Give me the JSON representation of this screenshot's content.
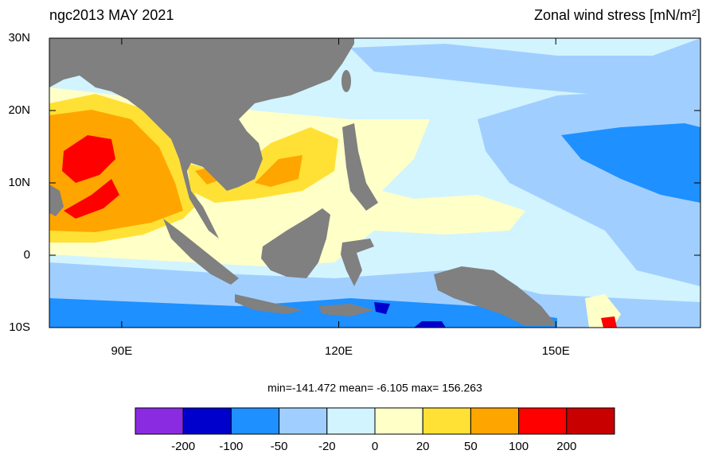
{
  "header": {
    "left_title": "ngc2013 MAY 2021",
    "right_title": "Zonal wind stress [mN/m²]"
  },
  "map": {
    "lonlim": [
      80,
      170
    ],
    "latlim": [
      -10,
      30
    ],
    "lat_ticks": [
      {
        "value": 30,
        "label": "30N"
      },
      {
        "value": 20,
        "label": "20N"
      },
      {
        "value": 10,
        "label": "10N"
      },
      0,
      {
        "value": -10,
        "label": "10S"
      }
    ],
    "lon_ticks": [
      {
        "value": 90,
        "label": "90E"
      },
      {
        "value": 120,
        "label": "120E"
      },
      {
        "value": 150,
        "label": "150E"
      }
    ],
    "land_color": "#808080"
  },
  "stats": "min=-141.472  mean=  -6.105  max= 156.263",
  "colorbar": {
    "levels": [
      -200,
      -100,
      -50,
      -20,
      0,
      20,
      50,
      100,
      200
    ],
    "colors": [
      "#8a2be2",
      "#0000cd",
      "#1e90ff",
      "#a0cfff",
      "#d2f4ff",
      "#ffffc8",
      "#ffe135",
      "#ffa500",
      "#ff0000",
      "#c80000"
    ]
  }
}
